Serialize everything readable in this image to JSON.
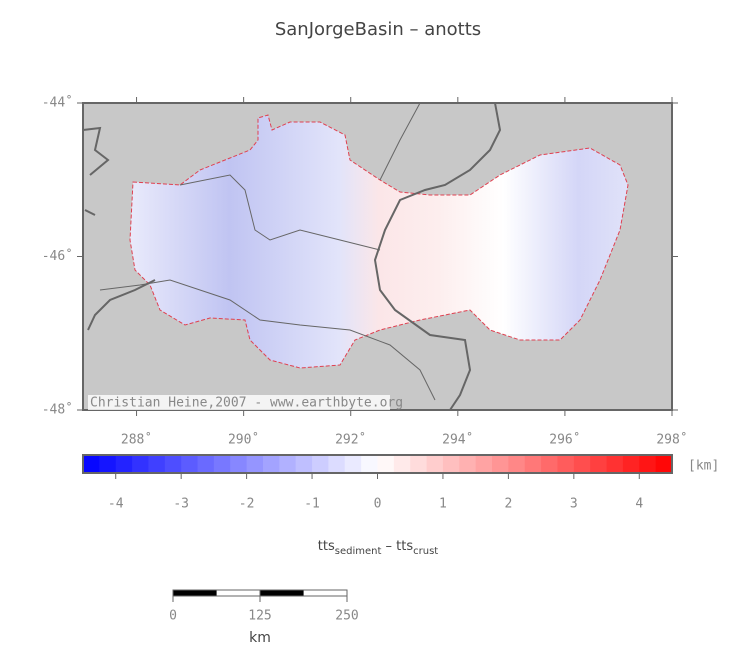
{
  "title": "SanJorgeBasin – anotts",
  "map": {
    "lon_range": [
      287,
      298
    ],
    "lat_range": [
      -48,
      -44
    ],
    "lon_ticks": [
      {
        "value": 288,
        "label": "288˚"
      },
      {
        "value": 290,
        "label": "290˚"
      },
      {
        "value": 292,
        "label": "292˚"
      },
      {
        "value": 294,
        "label": "294˚"
      },
      {
        "value": 296,
        "label": "296˚"
      },
      {
        "value": 298,
        "label": "298˚"
      }
    ],
    "lat_ticks": [
      {
        "value": -44,
        "label": "-44˚"
      },
      {
        "value": -46,
        "label": "-46˚"
      },
      {
        "value": -48,
        "label": "-48˚"
      }
    ],
    "credit": "Christian Heine,2007 - www.earthbyte.org"
  },
  "colorbar": {
    "range": [
      -4.5,
      4.5
    ],
    "step": 0.25,
    "ticks": [
      -4,
      -3,
      -2,
      -1,
      0,
      1,
      2,
      3,
      4
    ],
    "unit": "[km]",
    "label_parts": [
      "tts",
      "sediment",
      " – tts",
      "crust"
    ]
  },
  "scalebar": {
    "ticks": [
      0,
      125,
      250
    ],
    "max": 250,
    "unit": "km"
  }
}
